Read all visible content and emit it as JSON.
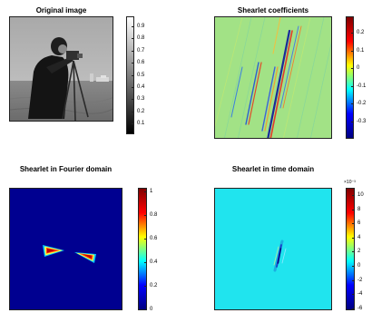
{
  "panels": [
    {
      "title": "Original image",
      "colorbar": {
        "gradient": [
          "#000000",
          "#ffffff"
        ],
        "ticks": [
          "0.9",
          "0.8",
          "0.7",
          "0.6",
          "0.5",
          "0.4",
          "0.3",
          "0.2",
          "0.1"
        ]
      }
    },
    {
      "title": "Shearlet coefficients",
      "colorbar": {
        "gradient": [
          "#000080",
          "#0000ff",
          "#00ffff",
          "#ffff00",
          "#ff0000",
          "#800000"
        ],
        "ticks": [
          "0.2",
          "0.1",
          "0",
          "-0.1",
          "-0.2",
          "-0.3"
        ]
      }
    },
    {
      "title": "Shearlet in Fourier domain",
      "colorbar": {
        "gradient": [
          "#000080",
          "#0000ff",
          "#00ffff",
          "#ffff00",
          "#ff0000",
          "#800000"
        ],
        "ticks": [
          "1",
          "0.8",
          "0.6",
          "0.4",
          "0.2",
          "0"
        ]
      }
    },
    {
      "title": "Shearlet in time domain",
      "colorbar": {
        "gradient": [
          "#000080",
          "#0000ff",
          "#00ffff",
          "#ffff00",
          "#ff0000",
          "#800000"
        ],
        "ticks": [
          "10",
          "8",
          "6",
          "4",
          "2",
          "0",
          "-2",
          "-4",
          "-6"
        ],
        "exponent": "×10⁻³"
      }
    }
  ]
}
